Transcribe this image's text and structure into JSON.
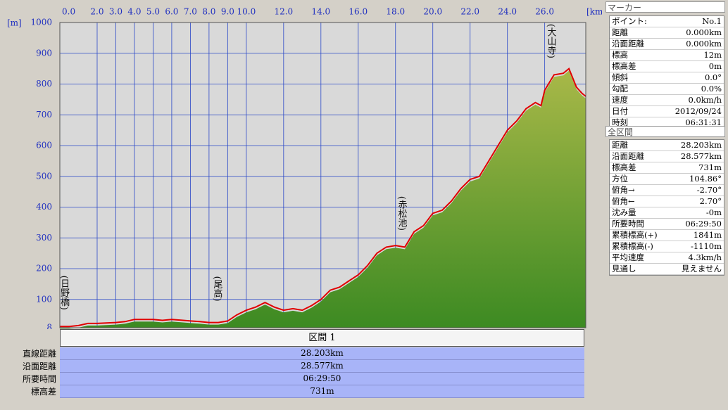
{
  "chart_data": {
    "type": "area",
    "x_unit": "[km]",
    "y_unit": "[m]",
    "xlim": [
      0,
      28.203
    ],
    "ylim": [
      8,
      1000
    ],
    "xticks": [
      {
        "value": 0,
        "label": "0.0"
      },
      {
        "value": 2,
        "label": "2.0"
      },
      {
        "value": 3,
        "label": "3.0"
      },
      {
        "value": 4,
        "label": "4.0"
      },
      {
        "value": 5,
        "label": "5.0"
      },
      {
        "value": 6,
        "label": "6.0"
      },
      {
        "value": 7,
        "label": "7.0"
      },
      {
        "value": 8,
        "label": "8.0"
      },
      {
        "value": 9,
        "label": "9.0"
      },
      {
        "value": 10,
        "label": "10.0"
      },
      {
        "value": 12,
        "label": "12.0"
      },
      {
        "value": 14,
        "label": "14.0"
      },
      {
        "value": 16,
        "label": "16.0"
      },
      {
        "value": 18,
        "label": "18.0"
      },
      {
        "value": 20,
        "label": "20.0"
      },
      {
        "value": 22,
        "label": "22.0"
      },
      {
        "value": 24,
        "label": "24.0"
      },
      {
        "value": 26,
        "label": "26.0"
      }
    ],
    "yticks": [
      8,
      100,
      200,
      300,
      400,
      500,
      600,
      700,
      800,
      900,
      1000
    ],
    "grid": true,
    "color": "#e00000",
    "fill_color": "#6aa030",
    "x": [
      0,
      0.5,
      1,
      1.5,
      2,
      3,
      3.5,
      4,
      5,
      5.5,
      6,
      7,
      7.5,
      8,
      8.5,
      9,
      9.5,
      10,
      10.5,
      11,
      11.5,
      12,
      12.5,
      13,
      13.5,
      14,
      14.5,
      15,
      15.5,
      16,
      16.5,
      17,
      17.5,
      18,
      18.5,
      19,
      19.5,
      20,
      20.5,
      21,
      21.5,
      22,
      22.5,
      23,
      23.5,
      24,
      24.5,
      25,
      25.5,
      25.8,
      26,
      26.5,
      27,
      27.3,
      27.7,
      28,
      28.203
    ],
    "values": [
      12,
      12,
      15,
      22,
      22,
      25,
      28,
      35,
      35,
      32,
      35,
      30,
      28,
      25,
      25,
      30,
      50,
      65,
      75,
      90,
      75,
      65,
      70,
      65,
      80,
      100,
      130,
      140,
      160,
      180,
      210,
      250,
      270,
      275,
      270,
      320,
      340,
      380,
      390,
      420,
      460,
      490,
      500,
      550,
      600,
      650,
      680,
      720,
      740,
      730,
      780,
      830,
      835,
      850,
      790,
      770,
      760
    ],
    "annotations": [
      {
        "text": "(日野橋)",
        "x": 0.1
      },
      {
        "text": "(尾高)",
        "x": 8.3
      },
      {
        "text": "(赤松池)",
        "x": 18.2
      },
      {
        "text": "(大山寺)",
        "x": 26.2
      }
    ]
  },
  "segment": {
    "title": "区間 1",
    "rows": [
      [
        "直線距離",
        "28.203km"
      ],
      [
        "沿面距離",
        "28.577km"
      ],
      [
        "所要時間",
        "06:29:50"
      ],
      [
        "標高差",
        "731m"
      ]
    ]
  },
  "marker": {
    "title": "マーカー",
    "rows": [
      [
        "ポイント:",
        "No.1"
      ],
      [
        "距離",
        "0.000km"
      ],
      [
        "沿面距離",
        "0.000km"
      ],
      [
        "標高",
        "12m"
      ],
      [
        "標高差",
        "0m"
      ],
      [
        "傾斜",
        "0.0°"
      ],
      [
        "勾配",
        "0.0%"
      ],
      [
        "速度",
        "0.0km/h"
      ],
      [
        "日付",
        "2012/09/24"
      ],
      [
        "時刻",
        "06:31:31"
      ]
    ]
  },
  "total": {
    "title": "全区間",
    "rows": [
      [
        "距離",
        "28.203km"
      ],
      [
        "沿面距離",
        "28.577km"
      ],
      [
        "標高差",
        "731m"
      ],
      [
        "方位",
        "104.86°"
      ],
      [
        "俯角→",
        "-2.70°"
      ],
      [
        "俯角←",
        "2.70°"
      ],
      [
        "沈み量",
        "-0m"
      ],
      [
        "所要時間",
        "06:29:50"
      ],
      [
        "累積標高(+)",
        "1841m"
      ],
      [
        "累積標高(-)",
        "-1110m"
      ],
      [
        "平均速度",
        "4.3km/h"
      ],
      [
        "見通し",
        "見えません"
      ]
    ]
  }
}
